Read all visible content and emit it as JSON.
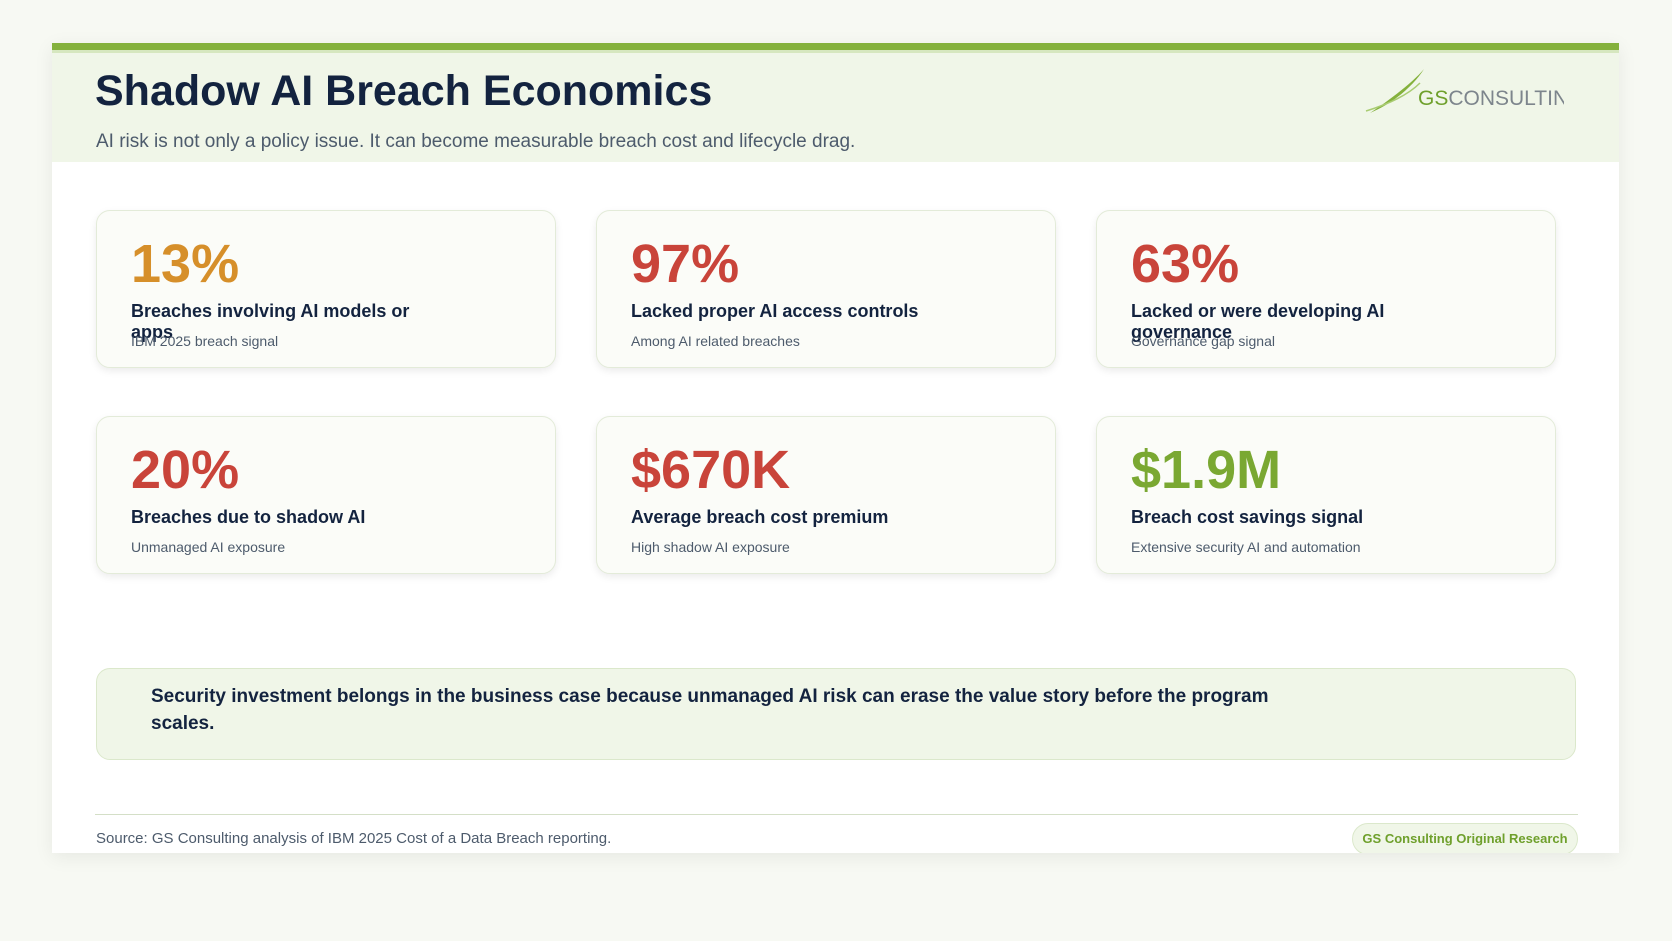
{
  "header": {
    "title": "Shadow AI Breach Economics",
    "subtitle": "AI risk is not only a policy issue. It can become measurable breach cost and lifecycle drag.",
    "logo": {
      "mark": "GS",
      "text": "CONSULTING"
    }
  },
  "cards": [
    {
      "value": "13%",
      "label": "Breaches involving AI models or apps",
      "note": "IBM 2025 breach signal",
      "color": "#d68f2a"
    },
    {
      "value": "97%",
      "label": "Lacked proper AI access controls",
      "note": "Among AI related breaches",
      "color": "#c9443a"
    },
    {
      "value": "63%",
      "label": "Lacked or were developing AI governance",
      "note": "Governance gap signal",
      "color": "#c9443a"
    },
    {
      "value": "20%",
      "label": "Breaches due to shadow AI",
      "note": "Unmanaged AI exposure",
      "color": "#c9443a"
    },
    {
      "value": "$670K",
      "label": "Average breach cost premium",
      "note": "High shadow AI exposure",
      "color": "#c9443a"
    },
    {
      "value": "$1.9M",
      "label": "Breach cost savings signal",
      "note": "Extensive security AI and automation",
      "color": "#7aa832"
    }
  ],
  "callout": "Security investment belongs in the business case because unmanaged AI risk can erase the value story before the program scales.",
  "footer": {
    "source": "Source: GS Consulting analysis of IBM 2025 Cost of a Data Breach reporting.",
    "badge": "GS Consulting Original Research"
  }
}
